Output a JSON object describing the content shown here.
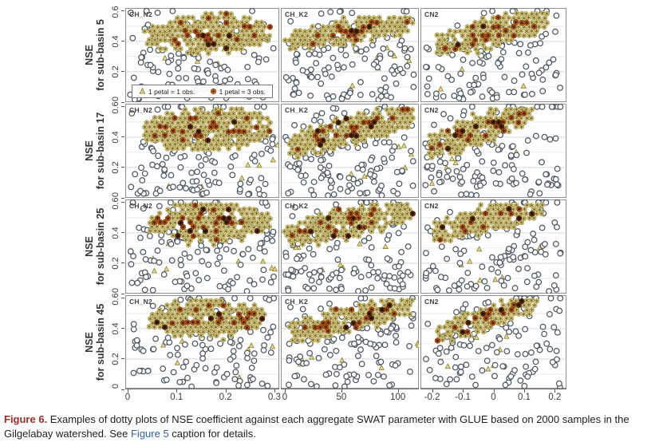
{
  "caption": {
    "label": "Figure 6.",
    "body1": " Examples of dotty plots of NSE coefficient against each aggregate SWAT parameter with GLUE based on 2000 samples in the Gilgelabay watershed. See ",
    "link_text": "Figure 5",
    "body2": " caption for details.",
    "label_color": "#9b2c24",
    "link_color": "#2f5f9f"
  },
  "legend": {
    "items": [
      {
        "marker": "sunflower-triangle",
        "label": "1 petal = 1 obs."
      },
      {
        "marker": "sunflower-disc",
        "label": "1 petal = 3 obs."
      }
    ]
  },
  "colors": {
    "khaki_fill": "#e9de9e",
    "khaki_stroke": "#b5a654",
    "petal": "#6b5a1d",
    "orange_fill": "#d2691e",
    "orange_stroke": "#8a3c0a",
    "orange_core": "#3a1a05",
    "dark_fill": "#7a3a0e",
    "dark_stroke": "#451f05",
    "dark_core": "#1d0c02",
    "circle_stroke": "#4d5864",
    "circle_fill": "#ffffff",
    "triangle_fill": "#e4d88f",
    "triangle_stroke": "#8d7c2e",
    "grid_major": "#d9d9d9",
    "grid_minor": "#ebebeb",
    "panel_border": "#8f8f8f",
    "axis_line": "#666666",
    "axis_text": "#3a3a3a"
  },
  "chart_data": {
    "type": "scatter",
    "subtype": "dotty-plot-sunflower-trellis",
    "n_samples_per_panel": 2000,
    "objective": "NSE",
    "ylim": [
      0,
      0.62
    ],
    "y_ticks": [
      "0",
      "0.2",
      "0.4",
      "0.6"
    ],
    "grid": "horizontal-light",
    "legend_position": "inside-first-panel-bottom",
    "rows": [
      {
        "sub_basin": 5,
        "label_line1": "NSE",
        "label_line2": "for sub-basin 5"
      },
      {
        "sub_basin": 17,
        "label_line1": "NSE",
        "label_line2": "for sub-basin 17"
      },
      {
        "sub_basin": 25,
        "label_line1": "NSE",
        "label_line2": "for sub-basin 25"
      },
      {
        "sub_basin": 45,
        "label_line1": "NSE",
        "label_line2": "for sub-basin 45"
      }
    ],
    "columns": [
      {
        "param": "CH_N2",
        "xlim": [
          0,
          0.305
        ],
        "x_ticks": [
          "0",
          "0.1",
          "0.2",
          "0.3"
        ]
      },
      {
        "param": "CH_K2",
        "xlim": [
          0,
          115
        ],
        "x_ticks": [
          "0",
          "50",
          "100"
        ]
      },
      {
        "param": "CN2",
        "xlim": [
          -0.225,
          0.225
        ],
        "x_ticks": [
          "-0.2",
          "-0.1",
          "0",
          "0.1",
          "0.2"
        ]
      }
    ],
    "panels": [
      {
        "row": 0,
        "col": 0,
        "seed": 101,
        "band": {
          "shape": "blob",
          "x0": 0.04,
          "x1": 0.295,
          "y0": 0.44,
          "y1": 0.46,
          "half_width": 0.105
        },
        "orange_frac": 0.26,
        "dark_frac": 0.08,
        "n_circles": 120,
        "n_triangles": 8
      },
      {
        "row": 0,
        "col": 1,
        "seed": 102,
        "band": {
          "shape": "band",
          "x0": 3,
          "x1": 113,
          "y0": 0.4,
          "y1": 0.53,
          "half_width": 0.075
        },
        "orange_frac": 0.26,
        "dark_frac": 0.07,
        "n_circles": 125,
        "n_triangles": 8
      },
      {
        "row": 0,
        "col": 2,
        "seed": 103,
        "band": {
          "shape": "band",
          "x0": -0.19,
          "x1": 0.18,
          "y0": 0.37,
          "y1": 0.55,
          "half_width": 0.085
        },
        "orange_frac": 0.28,
        "dark_frac": 0.08,
        "n_circles": 118,
        "n_triangles": 7
      },
      {
        "row": 1,
        "col": 0,
        "seed": 104,
        "band": {
          "shape": "blob",
          "x0": 0.03,
          "x1": 0.295,
          "y0": 0.44,
          "y1": 0.47,
          "half_width": 0.11
        },
        "orange_frac": 0.25,
        "dark_frac": 0.07,
        "n_circles": 130,
        "n_triangles": 9
      },
      {
        "row": 1,
        "col": 1,
        "seed": 105,
        "band": {
          "shape": "band",
          "x0": 3,
          "x1": 113,
          "y0": 0.34,
          "y1": 0.55,
          "half_width": 0.085
        },
        "orange_frac": 0.27,
        "dark_frac": 0.07,
        "n_circles": 130,
        "n_triangles": 8
      },
      {
        "row": 1,
        "col": 2,
        "seed": 106,
        "band": {
          "shape": "band",
          "x0": -0.21,
          "x1": 0.13,
          "y0": 0.33,
          "y1": 0.57,
          "half_width": 0.09
        },
        "orange_frac": 0.34,
        "dark_frac": 0.11,
        "n_circles": 125,
        "n_triangles": 7
      },
      {
        "row": 2,
        "col": 0,
        "seed": 107,
        "band": {
          "shape": "blob",
          "x0": 0.04,
          "x1": 0.295,
          "y0": 0.46,
          "y1": 0.48,
          "half_width": 0.105
        },
        "orange_frac": 0.27,
        "dark_frac": 0.08,
        "n_circles": 125,
        "n_triangles": 8
      },
      {
        "row": 2,
        "col": 1,
        "seed": 108,
        "band": {
          "shape": "band",
          "x0": 2,
          "x1": 113,
          "y0": 0.38,
          "y1": 0.56,
          "half_width": 0.085
        },
        "orange_frac": 0.25,
        "dark_frac": 0.08,
        "n_circles": 125,
        "n_triangles": 8
      },
      {
        "row": 2,
        "col": 2,
        "seed": 109,
        "band": {
          "shape": "band",
          "x0": -0.2,
          "x1": 0.16,
          "y0": 0.4,
          "y1": 0.59,
          "half_width": 0.085
        },
        "orange_frac": 0.27,
        "dark_frac": 0.07,
        "n_circles": 118,
        "n_triangles": 7
      },
      {
        "row": 3,
        "col": 0,
        "seed": 110,
        "band": {
          "shape": "blob",
          "x0": 0.04,
          "x1": 0.285,
          "y0": 0.46,
          "y1": 0.48,
          "half_width": 0.1
        },
        "orange_frac": 0.29,
        "dark_frac": 0.09,
        "n_circles": 120,
        "n_triangles": 8
      },
      {
        "row": 3,
        "col": 1,
        "seed": 111,
        "band": {
          "shape": "band",
          "x0": 3,
          "x1": 113,
          "y0": 0.37,
          "y1": 0.56,
          "half_width": 0.08
        },
        "orange_frac": 0.27,
        "dark_frac": 0.08,
        "n_circles": 120,
        "n_triangles": 8
      },
      {
        "row": 3,
        "col": 2,
        "seed": 112,
        "band": {
          "shape": "band",
          "x0": -0.185,
          "x1": 0.135,
          "y0": 0.37,
          "y1": 0.57,
          "half_width": 0.075
        },
        "orange_frac": 0.34,
        "dark_frac": 0.11,
        "n_circles": 115,
        "n_triangles": 7
      }
    ]
  }
}
